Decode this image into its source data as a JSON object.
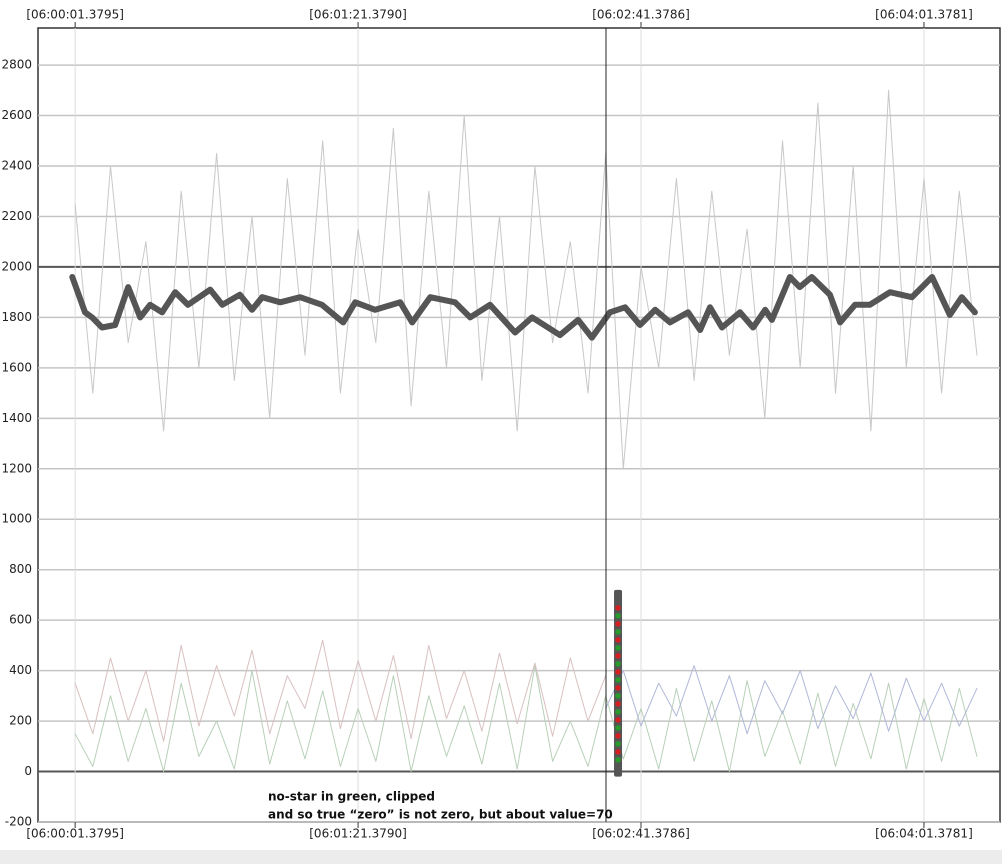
{
  "chart_data": {
    "type": "line",
    "annotations": [
      "no-star in green, clipped",
      "and so true “zero” is not zero, but about value=70"
    ],
    "xlim": [
      -10.5,
      261.5
    ],
    "xticks": [
      {
        "value": 0,
        "label": "[06:00:01.3795]"
      },
      {
        "value": 79.9995,
        "label": "[06:01:21.3790]"
      },
      {
        "value": 159.9991,
        "label": "[06:02:41.3786]"
      },
      {
        "value": 239.9986,
        "label": "[06:04:01.3781]"
      }
    ],
    "ylim": [
      -200,
      2947
    ],
    "yticks": [
      -200,
      0,
      200,
      400,
      600,
      800,
      1000,
      1200,
      1400,
      1600,
      1800,
      2000,
      2200,
      2400,
      2600,
      2800
    ],
    "grid": true,
    "emphasized_y": [
      0,
      2000
    ],
    "cursor_x": 150.1,
    "marker": {
      "x": 153.5,
      "range": [
        -20,
        720
      ],
      "color": "#555555"
    },
    "series": [
      {
        "color": "#c8c8c8",
        "width": 1,
        "x": [
          0,
          5,
          10,
          15,
          20,
          25,
          30,
          35,
          40,
          45,
          50,
          55,
          60,
          65,
          70,
          75,
          80,
          85,
          90,
          95,
          100,
          105,
          110,
          115,
          120,
          125,
          130,
          135,
          140,
          145,
          150,
          155,
          160,
          165,
          170,
          175,
          180,
          185,
          190,
          195,
          200,
          205,
          210,
          215,
          220,
          225,
          230,
          235,
          240,
          245,
          250,
          255
        ],
        "values": [
          2250,
          1500,
          2400,
          1700,
          2100,
          1350,
          2300,
          1600,
          2450,
          1550,
          2200,
          1400,
          2350,
          1650,
          2500,
          1500,
          2150,
          1700,
          2550,
          1450,
          2300,
          1600,
          2600,
          1550,
          2200,
          1350,
          2400,
          1700,
          2100,
          1500,
          2450,
          1200,
          2000,
          1600,
          2350,
          1550,
          2300,
          1650,
          2150,
          1400,
          2500,
          1600,
          2650,
          1500,
          2400,
          1350,
          2700,
          1600,
          2350,
          1500,
          2300,
          1650
        ]
      },
      {
        "color": "#b8d0b8",
        "width": 1,
        "x": [
          0,
          5,
          10,
          15,
          20,
          25,
          30,
          35,
          40,
          45,
          50,
          55,
          60,
          65,
          70,
          75,
          80,
          85,
          90,
          95,
          100,
          105,
          110,
          115,
          120,
          125,
          130,
          135,
          140,
          145,
          150,
          155,
          160,
          165,
          170,
          175,
          180,
          185,
          190,
          195,
          200,
          205,
          210,
          215,
          220,
          225,
          230,
          235,
          240,
          245,
          250,
          255
        ],
        "values": [
          150,
          20,
          300,
          40,
          250,
          0,
          350,
          60,
          200,
          10,
          400,
          30,
          280,
          50,
          320,
          20,
          250,
          40,
          380,
          0,
          300,
          60,
          260,
          30,
          350,
          10,
          420,
          40,
          200,
          20,
          300,
          50,
          250,
          10,
          330,
          40,
          280,
          0,
          360,
          60,
          240,
          30,
          310,
          20,
          270,
          50,
          350,
          10,
          290,
          40,
          330,
          60
        ]
      },
      {
        "color": "#d8c0c0",
        "width": 1,
        "x": [
          0,
          5,
          10,
          15,
          20,
          25,
          30,
          35,
          40,
          45,
          50,
          55,
          60,
          65,
          70,
          75,
          80,
          85,
          90,
          95,
          100,
          105,
          110,
          115,
          120,
          125,
          130,
          135,
          140,
          145,
          150,
          155,
          160,
          165,
          170,
          175,
          180,
          185,
          190,
          195,
          200,
          205,
          210,
          215,
          220,
          225,
          230,
          235,
          240,
          245,
          250,
          255
        ],
        "values": [
          350,
          150,
          450,
          200,
          400,
          120,
          500,
          180,
          420,
          220,
          480,
          150,
          380,
          250,
          520,
          170,
          440,
          200,
          460,
          130,
          500,
          210,
          400,
          160,
          470,
          190,
          430,
          140,
          450,
          200,
          380,
          null,
          null,
          null,
          null,
          null,
          null,
          null,
          null,
          null,
          null,
          null,
          null,
          null,
          null,
          null,
          null,
          null,
          null,
          null,
          null,
          null
        ]
      },
      {
        "color": "#b0b8d8",
        "width": 1,
        "x": [
          0,
          5,
          10,
          15,
          20,
          25,
          30,
          35,
          40,
          45,
          50,
          55,
          60,
          65,
          70,
          75,
          80,
          85,
          90,
          95,
          100,
          105,
          110,
          115,
          120,
          125,
          130,
          135,
          140,
          145,
          150,
          155,
          160,
          165,
          170,
          175,
          180,
          185,
          190,
          195,
          200,
          205,
          210,
          215,
          220,
          225,
          230,
          235,
          240,
          245,
          250,
          255
        ],
        "values": [
          null,
          null,
          null,
          null,
          null,
          null,
          null,
          null,
          null,
          null,
          null,
          null,
          null,
          null,
          null,
          null,
          null,
          null,
          null,
          null,
          null,
          null,
          null,
          null,
          null,
          null,
          null,
          null,
          null,
          null,
          250,
          400,
          180,
          350,
          220,
          420,
          200,
          380,
          150,
          360,
          230,
          400,
          170,
          340,
          210,
          390,
          160,
          370,
          200,
          350,
          180,
          330
        ]
      },
      {
        "color": "#555555",
        "width": 6,
        "x": [
          -0.8,
          2.8,
          4.8,
          7.6,
          11.3,
          15.0,
          18.4,
          21.2,
          24.6,
          28.3,
          31.9,
          38.2,
          41.6,
          46.6,
          50.0,
          52.9,
          58.0,
          63.6,
          69.8,
          75.8,
          79.2,
          84.8,
          91.9,
          95.3,
          100.4,
          107.4,
          111.7,
          117.3,
          124.4,
          129.2,
          137.1,
          142.2,
          146.1,
          151.2,
          155.5,
          159.7,
          164.0,
          168.2,
          173.3,
          176.7,
          179.5,
          182.9,
          188.0,
          191.7,
          195.1,
          197.0,
          202.1,
          204.9,
          208.3,
          213.4,
          216.3,
          220.5,
          224.7,
          230.4,
          236.6,
          242.3,
          247.3,
          250.7,
          254.4
        ],
        "values": [
          1960,
          1820,
          1800,
          1760,
          1770,
          1920,
          1800,
          1850,
          1820,
          1900,
          1850,
          1910,
          1850,
          1890,
          1830,
          1880,
          1860,
          1880,
          1850,
          1780,
          1860,
          1830,
          1860,
          1780,
          1880,
          1860,
          1800,
          1850,
          1740,
          1800,
          1730,
          1790,
          1720,
          1820,
          1840,
          1770,
          1830,
          1780,
          1820,
          1750,
          1840,
          1760,
          1820,
          1760,
          1830,
          1790,
          1960,
          1920,
          1960,
          1890,
          1780,
          1850,
          1850,
          1900,
          1880,
          1960,
          1810,
          1880,
          1820
        ]
      }
    ]
  }
}
